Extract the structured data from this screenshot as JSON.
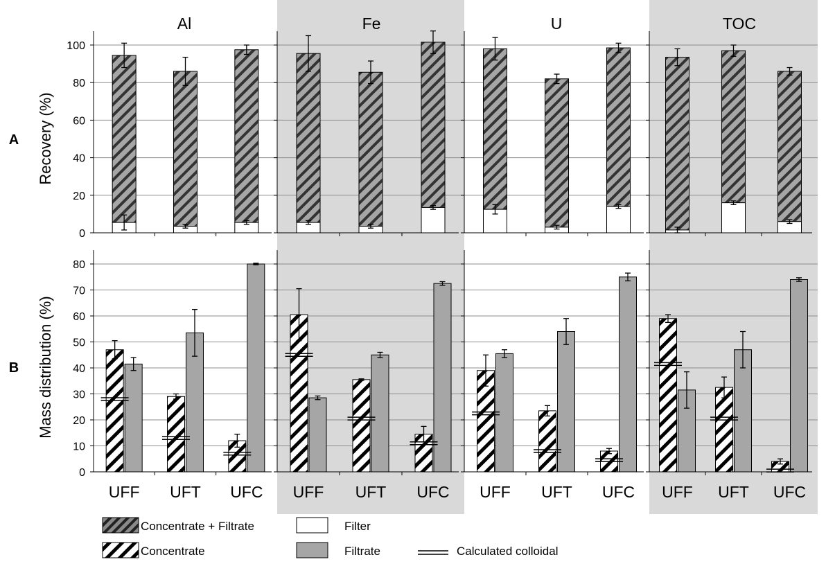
{
  "figure": {
    "row_labels": [
      "A",
      "B"
    ],
    "legend": {
      "concentrate_filtrate": "Concentrate + Filtrate",
      "concentrate": "Concentrate",
      "filter": "Filter",
      "filtrate": "Filtrate",
      "calculated_colloidal": "Calculated colloidal"
    }
  },
  "chart_data": [
    {
      "type": "bar",
      "title": "",
      "ylabel": "Recovery (%)",
      "ylim": [
        0,
        100
      ],
      "yticks": [
        0,
        20,
        40,
        60,
        80,
        100
      ],
      "categories": [
        "UFF",
        "UFT",
        "UFC"
      ],
      "stacking": "stacked",
      "panels": [
        {
          "title": "Al",
          "shaded": false,
          "series": [
            {
              "name": "Filter",
              "values": [
                5.5,
                3.5,
                5.5
              ],
              "errors": [
                4.0,
                1.0,
                1.0
              ]
            },
            {
              "name": "Concentrate + Filtrate",
              "totals": [
                94.5,
                86,
                97.5
              ],
              "errors": [
                6.5,
                7.5,
                2.5
              ]
            }
          ]
        },
        {
          "title": "Fe",
          "shaded": true,
          "series": [
            {
              "name": "Filter",
              "values": [
                5.5,
                3.5,
                13.5
              ],
              "errors": [
                1.0,
                1.0,
                1.0
              ]
            },
            {
              "name": "Concentrate + Filtrate",
              "totals": [
                95.5,
                85.5,
                101.5
              ],
              "errors": [
                9.5,
                6.0,
                6.0
              ]
            }
          ]
        },
        {
          "title": "U",
          "shaded": false,
          "series": [
            {
              "name": "Filter",
              "values": [
                12.5,
                3.0,
                14.0
              ],
              "errors": [
                2.5,
                1.0,
                1.0
              ]
            },
            {
              "name": "Concentrate + Filtrate",
              "totals": [
                98,
                82,
                98.5
              ],
              "errors": [
                6.0,
                2.5,
                2.5
              ]
            }
          ]
        },
        {
          "title": "TOC",
          "shaded": true,
          "series": [
            {
              "name": "Filter",
              "values": [
                1.5,
                16.0,
                6.0
              ],
              "errors": [
                1.5,
                1.0,
                1.0
              ]
            },
            {
              "name": "Concentrate + Filtrate",
              "totals": [
                93.5,
                97,
                86
              ],
              "errors": [
                4.5,
                3.0,
                2.0
              ]
            }
          ]
        }
      ]
    },
    {
      "type": "bar",
      "title": "",
      "ylabel": "Mass distribution (%)",
      "ylim": [
        0,
        80
      ],
      "yticks": [
        0,
        10,
        20,
        30,
        40,
        50,
        60,
        70,
        80
      ],
      "categories": [
        "UFF",
        "UFT",
        "UFC"
      ],
      "stacking": "grouped",
      "panels": [
        {
          "title": "Al",
          "shaded": false,
          "series": [
            {
              "name": "Concentrate",
              "values": [
                47,
                29,
                12
              ],
              "errors": [
                3.5,
                1.0,
                2.5
              ]
            },
            {
              "name": "Filtrate",
              "values": [
                41.5,
                53.5,
                80
              ],
              "errors": [
                2.5,
                9.0,
                0.3
              ]
            },
            {
              "name": "Calculated colloidal",
              "values": [
                28,
                13,
                7
              ]
            }
          ]
        },
        {
          "title": "Fe",
          "shaded": true,
          "series": [
            {
              "name": "Concentrate",
              "values": [
                60.5,
                35.5,
                14.5
              ],
              "errors": [
                10,
                0.3,
                3.0
              ]
            },
            {
              "name": "Filtrate",
              "values": [
                28.5,
                45,
                72.5
              ],
              "errors": [
                0.7,
                1.0,
                0.7
              ]
            },
            {
              "name": "Calculated colloidal",
              "values": [
                45,
                20.5,
                11
              ]
            }
          ]
        },
        {
          "title": "U",
          "shaded": false,
          "series": [
            {
              "name": "Concentrate",
              "values": [
                39,
                23.5,
                8
              ],
              "errors": [
                6.0,
                2.0,
                1.0
              ]
            },
            {
              "name": "Filtrate",
              "values": [
                45.5,
                54,
                75
              ],
              "errors": [
                1.5,
                5.0,
                1.5
              ]
            },
            {
              "name": "Calculated colloidal",
              "values": [
                22.5,
                8,
                4.5
              ]
            }
          ]
        },
        {
          "title": "TOC",
          "shaded": true,
          "series": [
            {
              "name": "Concentrate",
              "values": [
                59,
                32.5,
                4
              ],
              "errors": [
                1.5,
                4.0,
                1.0
              ]
            },
            {
              "name": "Filtrate",
              "values": [
                31.5,
                47,
                74
              ],
              "errors": [
                7.0,
                7.0,
                0.7
              ]
            },
            {
              "name": "Calculated colloidal",
              "values": [
                41.5,
                20.5,
                0.5
              ]
            }
          ]
        }
      ]
    }
  ],
  "colors": {
    "bar_gray": "#a6a6a6",
    "panel_shade": "#d9d9d9",
    "gridline": "#8c8c8c",
    "stroke": "#000000"
  }
}
